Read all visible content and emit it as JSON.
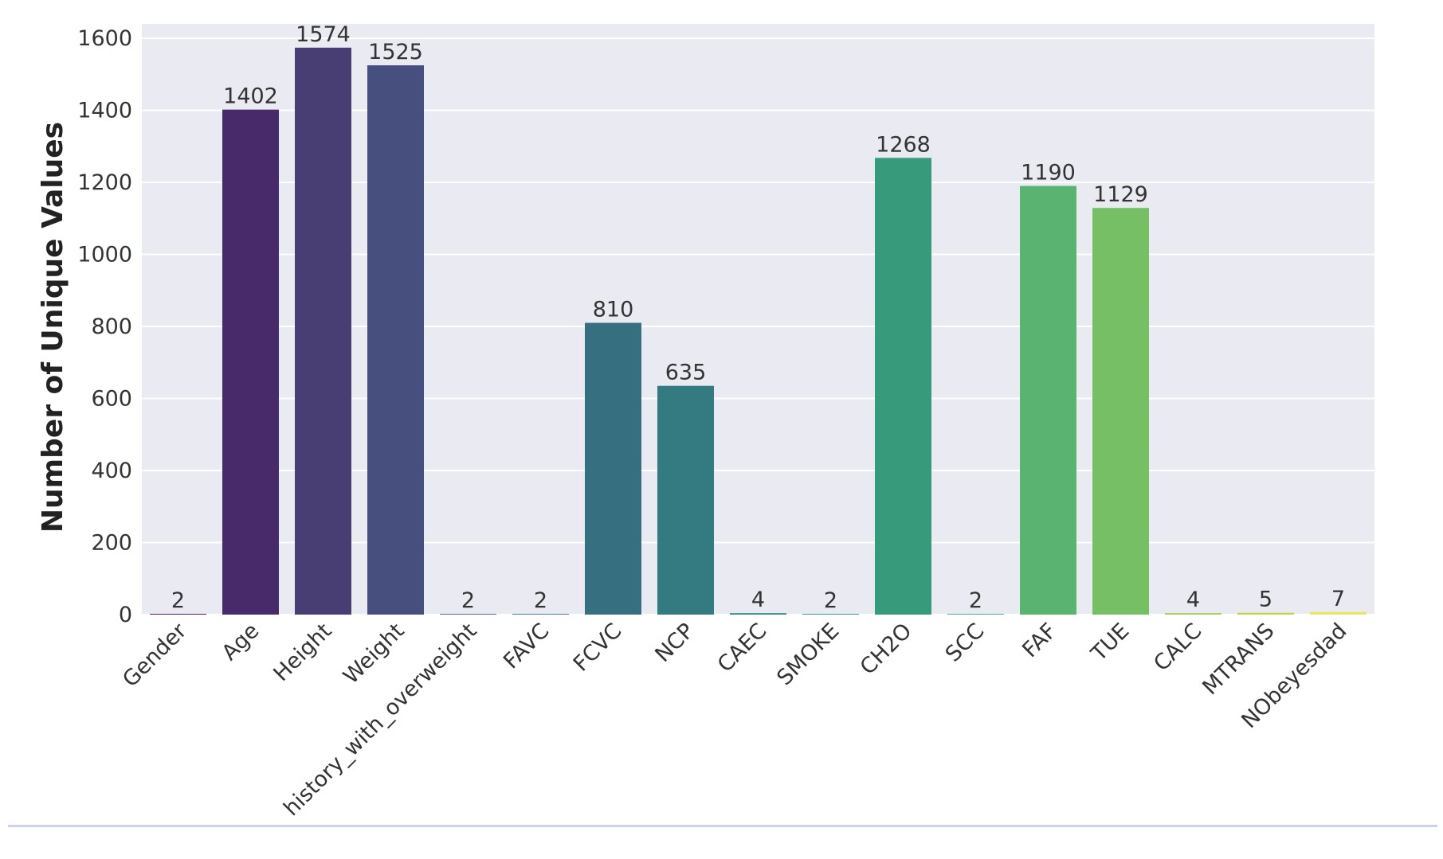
{
  "chart_data": {
    "type": "bar",
    "title": "",
    "xlabel": "",
    "ylabel": "Number of Unique Values",
    "ylim": [
      0,
      1640
    ],
    "yticks": [
      0,
      200,
      400,
      600,
      800,
      1000,
      1200,
      1400,
      1600
    ],
    "grid": true,
    "legend": "none",
    "background": "#eaeaf2",
    "categories": [
      "Gender",
      "Age",
      "Height",
      "Weight",
      "family_history_with_overweight",
      "FAVC",
      "FCVC",
      "NCP",
      "CAEC",
      "SMOKE",
      "CH2O",
      "SCC",
      "FAF",
      "TUE",
      "CALC",
      "MTRANS",
      "NObeyesdad"
    ],
    "category_labels": [
      "Gender",
      "Age",
      "Height",
      "Weight",
      "history_with_overweight",
      "FAVC",
      "FCVC",
      "NCP",
      "CAEC",
      "SMOKE",
      "CH2O",
      "SCC",
      "FAF",
      "TUE",
      "CALC",
      "MTRANS",
      "NObeyesdad"
    ],
    "values": [
      2,
      1402,
      1574,
      1525,
      2,
      2,
      810,
      635,
      4,
      2,
      1268,
      2,
      1190,
      1129,
      4,
      5,
      7
    ],
    "colors": [
      "#440154",
      "#482173",
      "#433e85",
      "#38588c",
      "#2d708e",
      "#25858e",
      "#1e9b8a",
      "#2ab07f",
      "#52c569",
      "#86d549",
      "#c2df23",
      "#440154",
      "#482173",
      "#433e85",
      "#38588c",
      "#2d708e",
      "#25858e"
    ],
    "bar_colors": [
      "#46085c",
      "#482a6b",
      "#483e74",
      "#464f7d",
      "#3e6383",
      "#3c7186",
      "#356f80",
      "#337a81",
      "#2f8884",
      "#2b9282",
      "#379a7b",
      "#42a676",
      "#5bb372",
      "#77bf65",
      "#9fca54",
      "#c6d545",
      "#e9e75c"
    ]
  }
}
